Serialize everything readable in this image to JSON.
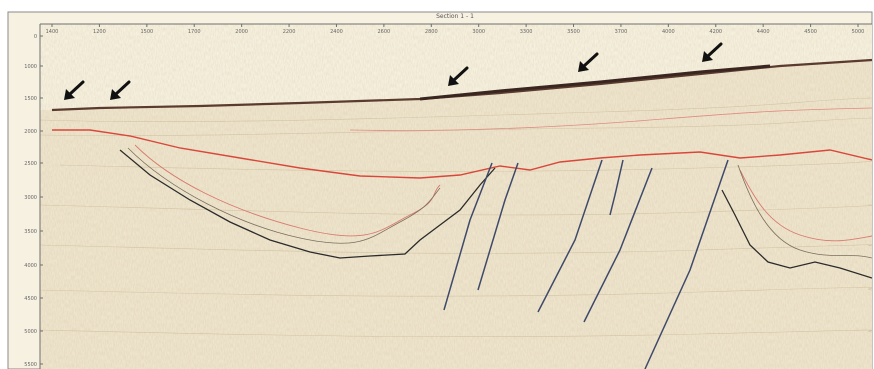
{
  "section": {
    "top_label": "Section 1 - 1",
    "x_ticks": [
      "1400",
      "1200",
      "1500",
      "1700",
      "2000",
      "2200",
      "2400",
      "2600",
      "2800",
      "3000",
      "3300",
      "3500",
      "3700",
      "4000",
      "4200",
      "4400",
      "4500",
      "5000"
    ],
    "y_ticks": [
      "0",
      "1000",
      "1500",
      "2000",
      "2500",
      "3000",
      "3500",
      "4000",
      "4500",
      "5000",
      "5500"
    ]
  },
  "colors": {
    "background": "#f6eedc",
    "upper_layer": "#fbf6e3",
    "red_horizon": "#d9473b",
    "black_horizon": "#2b2b2b",
    "fault": "#3f4a6b",
    "arrow": "#111111"
  }
}
